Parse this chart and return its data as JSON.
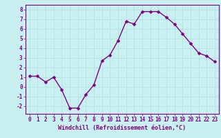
{
  "x": [
    0,
    1,
    2,
    3,
    4,
    5,
    6,
    7,
    8,
    9,
    10,
    11,
    12,
    13,
    14,
    15,
    16,
    17,
    18,
    19,
    20,
    21,
    22,
    23
  ],
  "y": [
    1.1,
    1.1,
    0.5,
    1.0,
    -0.3,
    -2.2,
    -2.2,
    -0.8,
    0.2,
    2.7,
    3.3,
    4.8,
    6.8,
    6.5,
    7.8,
    7.8,
    7.8,
    7.2,
    6.5,
    5.5,
    4.5,
    3.5,
    3.2,
    2.6
  ],
  "line_color": "#800080",
  "marker_color": "#800080",
  "bg_color": "#c8f0f0",
  "grid_color": "#b0dede",
  "xlabel": "Windchill (Refroidissement éolien,°C)",
  "xlabel_color": "#800080",
  "tick_color": "#800080",
  "spine_color": "#800080",
  "ylim": [
    -2.8,
    8.5
  ],
  "xlim": [
    -0.5,
    23.5
  ],
  "yticks": [
    -2,
    -1,
    0,
    1,
    2,
    3,
    4,
    5,
    6,
    7,
    8
  ],
  "xticks": [
    0,
    1,
    2,
    3,
    4,
    5,
    6,
    7,
    8,
    9,
    10,
    11,
    12,
    13,
    14,
    15,
    16,
    17,
    18,
    19,
    20,
    21,
    22,
    23
  ],
  "marker_size": 2.5,
  "line_width": 1.0,
  "tick_fontsize": 5.5,
  "xlabel_fontsize": 6.0
}
